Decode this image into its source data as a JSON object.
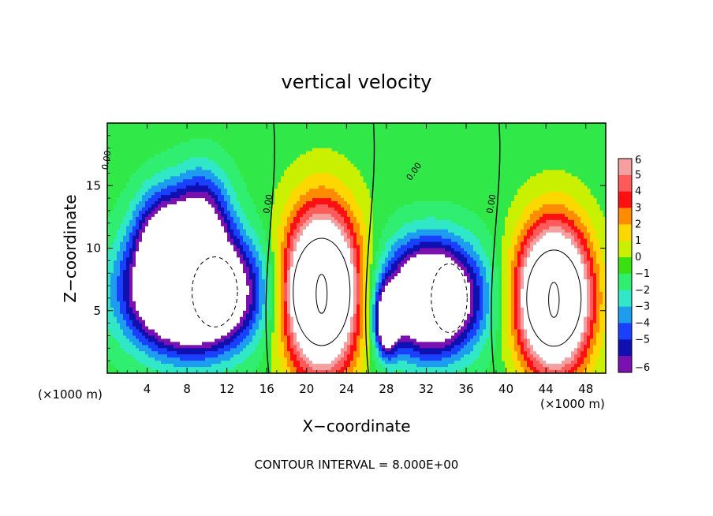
{
  "chart_data": {
    "type": "heatmap",
    "title": "vertical velocity",
    "xlabel": "X−coordinate",
    "ylabel": "Z−coordinate",
    "x_unit_left": "(×1000 m)",
    "x_unit_right": "(×1000 m)",
    "footer": "CONTOUR INTERVAL = 8.000E+00",
    "xlim": [
      0,
      50
    ],
    "ylim": [
      0,
      20
    ],
    "x_ticks": [
      4,
      8,
      12,
      16,
      20,
      24,
      28,
      32,
      36,
      40,
      44,
      48
    ],
    "y_ticks": [
      5,
      10,
      15
    ],
    "colorbar": {
      "levels": [
        6,
        5,
        4,
        3,
        2,
        1,
        0,
        -1,
        -2,
        -3,
        -4,
        -5,
        -6
      ],
      "labels": [
        "6",
        "5",
        "4",
        "3",
        "2",
        "1",
        "0",
        "−1",
        "−2",
        "−3",
        "−4",
        "−5",
        "−6"
      ],
      "colors": [
        "#f4a0a0",
        "#ff5a5a",
        "#ff1010",
        "#ff8c00",
        "#ffd700",
        "#c8f000",
        "#38e010",
        "#30ee70",
        "#30e8c8",
        "#1e9cf0",
        "#1a40ff",
        "#1010b0",
        "#7a10b0"
      ]
    },
    "contour_labels": [
      "0.00",
      "0.00",
      "0.00",
      "0.00"
    ],
    "background_color": "#30e848",
    "cells": [
      {
        "kind": "down",
        "x": 8.5,
        "z": 6.5,
        "rx": 7.6,
        "rz": 5.6,
        "amp": -16
      },
      {
        "kind": "down",
        "x": 5.5,
        "z": 11.0,
        "rx": 3.5,
        "rz": 5.0,
        "amp": -6
      },
      {
        "kind": "down",
        "x": 9.5,
        "z": 12.5,
        "rx": 3.5,
        "rz": 5.0,
        "amp": -6
      },
      {
        "kind": "up",
        "x": 21.5,
        "z": 6.5,
        "rx": 4.6,
        "rz": 7.8,
        "amp": 16
      },
      {
        "kind": "down",
        "x": 32.5,
        "z": 6.0,
        "rx": 6.0,
        "rz": 5.5,
        "amp": -13
      },
      {
        "kind": "down",
        "x": 28.0,
        "z": 4.0,
        "rx": 1.4,
        "rz": 3.2,
        "amp": -8
      },
      {
        "kind": "up",
        "x": 44.8,
        "z": 6.0,
        "rx": 4.4,
        "rz": 7.0,
        "amp": 16
      }
    ]
  }
}
